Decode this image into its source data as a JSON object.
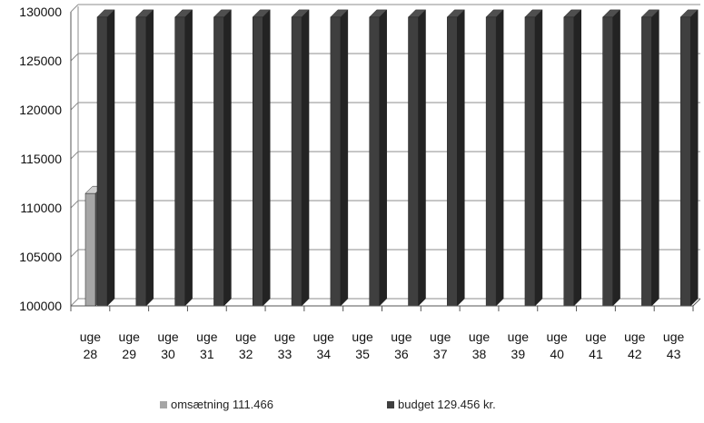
{
  "chart_data": {
    "type": "bar",
    "title": "",
    "xlabel": "",
    "ylabel": "",
    "categories": [
      [
        "uge",
        "28"
      ],
      [
        "uge",
        "29"
      ],
      [
        "uge",
        "30"
      ],
      [
        "uge",
        "31"
      ],
      [
        "uge",
        "32"
      ],
      [
        "uge",
        "33"
      ],
      [
        "uge",
        "34"
      ],
      [
        "uge",
        "35"
      ],
      [
        "uge",
        "36"
      ],
      [
        "uge",
        "37"
      ],
      [
        "uge",
        "38"
      ],
      [
        "uge",
        "39"
      ],
      [
        "uge",
        "40"
      ],
      [
        "uge",
        "41"
      ],
      [
        "uge",
        "42"
      ],
      [
        "uge",
        "43"
      ]
    ],
    "ylim": [
      100000,
      130000
    ],
    "yticks": [
      "100000",
      "105000",
      "110000",
      "115000",
      "120000",
      "125000",
      "130000"
    ],
    "grid": true,
    "legend_position": "bottom",
    "series": [
      {
        "name": "omsætning 111.466",
        "color": "#a6a6a6",
        "values": [
          111466,
          null,
          null,
          null,
          null,
          null,
          null,
          null,
          null,
          null,
          null,
          null,
          null,
          null,
          null,
          null
        ]
      },
      {
        "name": "budget 129.456 kr.",
        "color": "#3f3f3f",
        "values": [
          129456,
          129456,
          129456,
          129456,
          129456,
          129456,
          129456,
          129456,
          129456,
          129456,
          129456,
          129456,
          129456,
          129456,
          129456,
          129456
        ]
      }
    ]
  }
}
